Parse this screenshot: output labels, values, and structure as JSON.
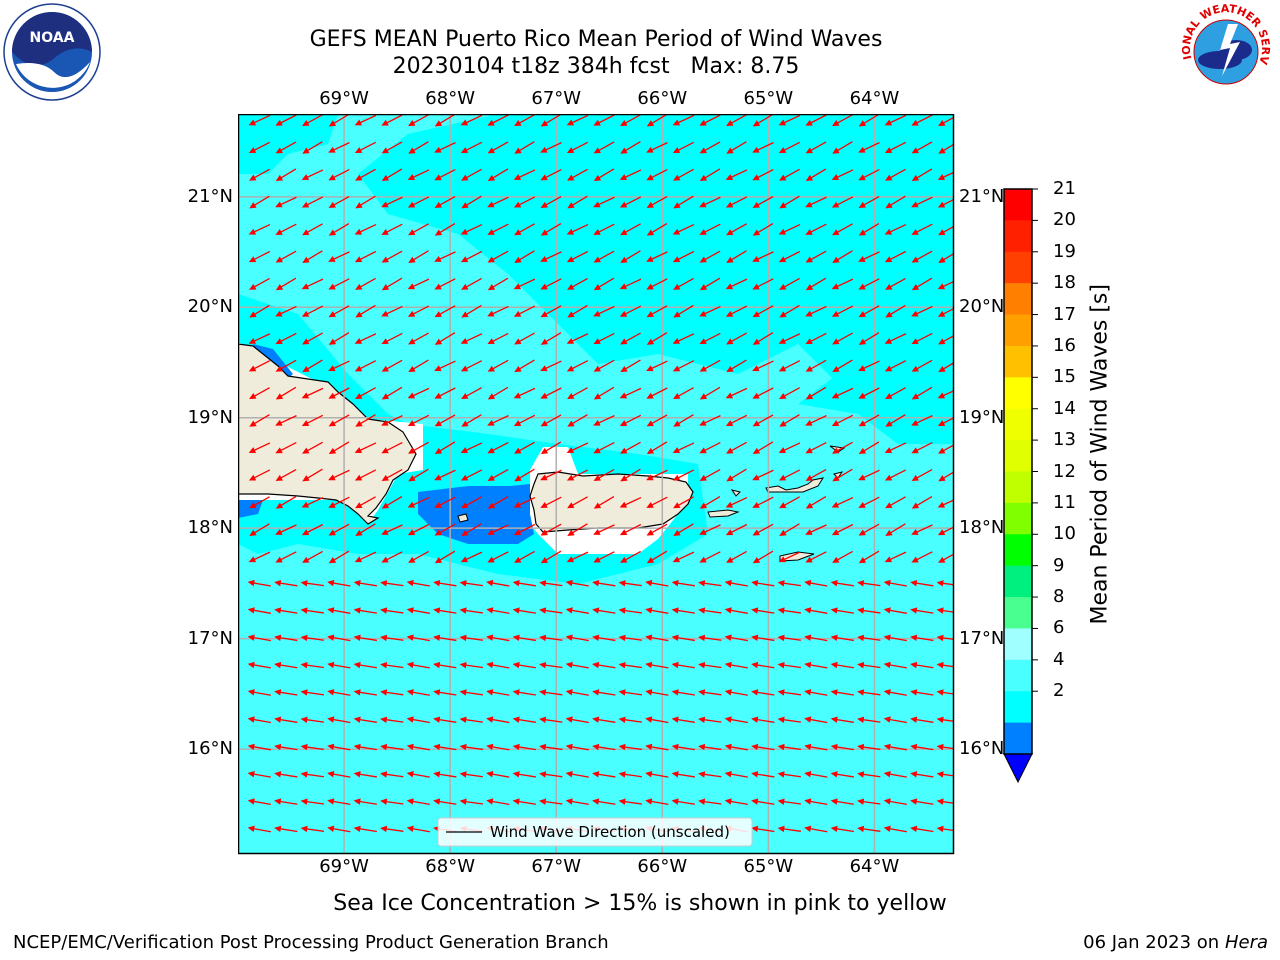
{
  "title": {
    "line1": "GEFS MEAN Puerto Rico Mean Period of Wind Waves",
    "line2": "20230104 t18z 384h fcst   Max: 8.75"
  },
  "map": {
    "lon_ticks": [
      "69°W",
      "68°W",
      "67°W",
      "66°W",
      "65°W",
      "64°W"
    ],
    "lat_ticks": [
      "21°N",
      "20°N",
      "19°N",
      "18°N",
      "17°N",
      "16°N"
    ],
    "lon_range": [
      -70,
      -63.25
    ],
    "lat_range": [
      15.05,
      21.75
    ],
    "legend": "Wind Wave Direction (unscaled)",
    "colors": {
      "ocean_main": "#49ffff",
      "ocean_light": "#00ffff",
      "shallow_blue": "#0080ff",
      "land": "#efecdc",
      "arrow": "#ff0000",
      "grid": "#b0b0b0"
    }
  },
  "colorbar": {
    "label": "Mean Period of Wind Waves [s]",
    "ticks": [
      "21",
      "20",
      "19",
      "18",
      "17",
      "16",
      "15",
      "14",
      "13",
      "12",
      "11",
      "10",
      "9",
      "8",
      "6",
      "4",
      "2"
    ],
    "colors": [
      "#ff0000",
      "#ff2000",
      "#ff4000",
      "#ff8000",
      "#ffa000",
      "#ffc000",
      "#ffff00",
      "#f0ff00",
      "#e0ff00",
      "#c0ff00",
      "#80ff00",
      "#00ff00",
      "#00f080",
      "#49ff8f",
      "#a0ffff",
      "#49ffff",
      "#00ffff",
      "#0080ff",
      "#0000ff"
    ]
  },
  "note": "Sea Ice Concentration > 15% is shown in pink to yellow",
  "footer": {
    "left": "NCEP/EMC/Verification Post Processing Product Generation Branch",
    "right_prefix": "06 Jan 2023 on ",
    "right_system": "Hera"
  },
  "logos": {
    "left_text": "NOAA",
    "left_ring": "NATIONAL OCEANIC AND ATMOSPHERIC ADMINISTRATION · U.S. DEPARTMENT OF COMMERCE",
    "right_ring": "NATIONAL WEATHER SERVICE"
  }
}
